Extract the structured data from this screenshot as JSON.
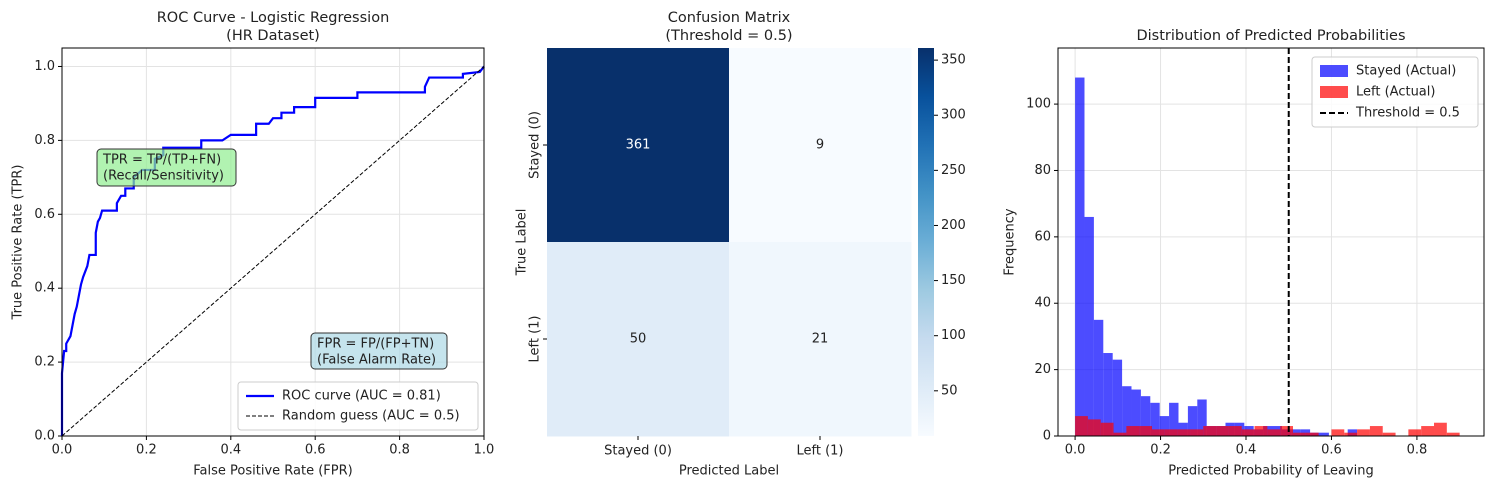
{
  "chart_data": [
    {
      "type": "line",
      "title": [
        "ROC Curve - Logistic Regression",
        "(HR Dataset)"
      ],
      "xlabel": "False Positive Rate (FPR)",
      "ylabel": "True Positive Rate (TPR)",
      "xlim": [
        0,
        1
      ],
      "ylim": [
        0,
        1.05
      ],
      "xticks": [
        {
          "value": 0,
          "label": "0.0"
        },
        0.2,
        0.4,
        0.6,
        0.8,
        {
          "value": 1,
          "label": "1.0"
        }
      ],
      "yticks": [
        {
          "value": 0,
          "label": "0.0"
        },
        0.2,
        0.4,
        0.6,
        0.8,
        {
          "value": 1,
          "label": "1.0"
        }
      ],
      "grid": true,
      "legend": "lower right",
      "series": [
        {
          "name": "ROC curve (AUC = 0.81)",
          "color": "#0000ff",
          "x": [
            0,
            0,
            0.005,
            0.01,
            0.01,
            0.02,
            0.025,
            0.03,
            0.035,
            0.04,
            0.045,
            0.05,
            0.06,
            0.065,
            0.08,
            0.08,
            0.085,
            0.09,
            0.095,
            0.13,
            0.13,
            0.14,
            0.15,
            0.15,
            0.17,
            0.17,
            0.19,
            0.22,
            0.22,
            0.24,
            0.24,
            0.33,
            0.33,
            0.38,
            0.4,
            0.46,
            0.46,
            0.49,
            0.5,
            0.52,
            0.52,
            0.55,
            0.55,
            0.6,
            0.6,
            0.7,
            0.7,
            0.86,
            0.86,
            0.87,
            0.95,
            0.95,
            0.99,
            1
          ],
          "y": [
            0,
            0.17,
            0.23,
            0.23,
            0.25,
            0.27,
            0.3,
            0.33,
            0.35,
            0.38,
            0.41,
            0.43,
            0.46,
            0.49,
            0.49,
            0.55,
            0.58,
            0.59,
            0.61,
            0.61,
            0.63,
            0.65,
            0.65,
            0.67,
            0.67,
            0.7,
            0.72,
            0.72,
            0.75,
            0.76,
            0.78,
            0.78,
            0.8,
            0.8,
            0.815,
            0.815,
            0.845,
            0.845,
            0.86,
            0.86,
            0.875,
            0.875,
            0.89,
            0.89,
            0.915,
            0.915,
            0.93,
            0.93,
            0.945,
            0.97,
            0.97,
            0.98,
            0.985,
            1
          ]
        },
        {
          "name": "Random guess (AUC = 0.5)",
          "color": "#000000",
          "dash": true,
          "x": [
            0,
            1
          ],
          "y": [
            0,
            1
          ]
        }
      ],
      "annotations": [
        {
          "text": [
            "TPR = TP/(TP+FN)",
            "(Recall/Sensitivity)"
          ],
          "color": "#90ee90"
        },
        {
          "text": [
            "FPR = FP/(FP+TN)",
            "(False Alarm Rate)"
          ],
          "color": "#add8e6"
        }
      ]
    },
    {
      "type": "heatmap",
      "title": [
        "Confusion Matrix",
        "(Threshold = 0.5)"
      ],
      "xlabel": "Predicted Label",
      "ylabel": "True Label",
      "x": [
        "Stayed (0)",
        "Left (1)"
      ],
      "y": [
        "Stayed (0)",
        "Left (1)"
      ],
      "values": [
        [
          361,
          9
        ],
        [
          50,
          21
        ]
      ],
      "colormap": "Blues",
      "clim": [
        9,
        361
      ],
      "cticks": [
        50,
        100,
        150,
        200,
        250,
        300,
        350
      ]
    },
    {
      "type": "histogram",
      "title": [
        "Distribution of Predicted Probabilities"
      ],
      "xlabel": "Predicted Probability of Leaving",
      "ylabel": "Frequency",
      "xlim": [
        -0.04,
        0.957
      ],
      "ylim": [
        0,
        116.9
      ],
      "xticks": [
        {
          "value": 0,
          "label": "0.0"
        },
        0.2,
        0.4,
        0.6,
        0.8
      ],
      "yticks": [
        0,
        20,
        40,
        60,
        80,
        100
      ],
      "grid": true,
      "legend": "upper right",
      "series": [
        {
          "name": "Stayed (Actual)",
          "color": "#0000ff",
          "bins": [
            0,
            0.022,
            0.044,
            0.066,
            0.088,
            0.11,
            0.132,
            0.154,
            0.176,
            0.198,
            0.22,
            0.242,
            0.264,
            0.286,
            0.308,
            0.33,
            0.352,
            0.374,
            0.396,
            0.418,
            0.44,
            0.462,
            0.484,
            0.506,
            0.528,
            0.55,
            0.572,
            0.594,
            0.616,
            0.638,
            0.66
          ],
          "values": [
            108,
            66,
            35,
            25,
            23,
            15,
            14,
            12,
            10,
            6,
            10,
            4,
            9,
            11,
            3,
            3,
            4,
            4,
            3,
            2,
            3,
            3,
            2,
            2,
            2,
            1,
            1,
            0,
            0,
            2
          ]
        },
        {
          "name": "Left (Actual)",
          "color": "#ff0000",
          "bins": [
            0,
            0.03,
            0.06,
            0.09,
            0.12,
            0.15,
            0.18,
            0.21,
            0.24,
            0.27,
            0.3,
            0.33,
            0.36,
            0.39,
            0.42,
            0.45,
            0.48,
            0.51,
            0.54,
            0.57,
            0.6,
            0.63,
            0.66,
            0.69,
            0.72,
            0.75,
            0.78,
            0.81,
            0.84,
            0.87,
            0.9
          ],
          "values": [
            6,
            5,
            4,
            1,
            3,
            3,
            2,
            2,
            2,
            2,
            3,
            3,
            3,
            2,
            3,
            2,
            3,
            1,
            1,
            0,
            2,
            1,
            2,
            3,
            1,
            0,
            2,
            3,
            4,
            1
          ]
        }
      ],
      "vline": {
        "name": "Threshold = 0.5",
        "value": 0.5,
        "color": "#000000"
      }
    }
  ]
}
